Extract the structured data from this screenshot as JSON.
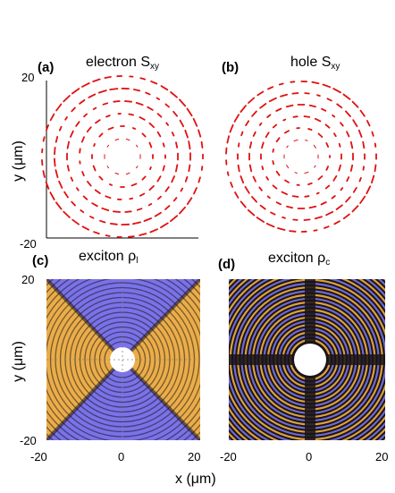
{
  "panels": [
    {
      "label": "(a)",
      "title": "electron S",
      "title_sub": "xy",
      "type": "quiver"
    },
    {
      "label": "(b)",
      "title": "hole S",
      "title_sub": "xy",
      "type": "quiver"
    },
    {
      "label": "(c)",
      "title": "exciton ρ",
      "title_sub": "l",
      "type": "map"
    },
    {
      "label": "(d)",
      "title": "exciton ρ",
      "title_sub": "c",
      "type": "map"
    }
  ],
  "axes": {
    "ylabel": "y (μm)",
    "xlabel": "x (μm)",
    "yticks_top": [
      "20",
      "-20"
    ],
    "yticks_bottom": [
      "20",
      "-20"
    ],
    "xticks_c": [
      "-20",
      "0",
      "20"
    ],
    "xticks_d": [
      "-20",
      "0",
      "20"
    ]
  },
  "colors": {
    "arrow": "#e01010",
    "map_blue": "#7a72e8",
    "map_gold": "#f0b040",
    "map_dark": "#1a1418"
  },
  "chart_data": {
    "type": "heatmap",
    "x_range_um": [
      -20,
      20
    ],
    "y_range_um": [
      -20,
      20
    ],
    "panels": [
      "(a)",
      "(b)",
      "(c)",
      "(d)"
    ]
  }
}
